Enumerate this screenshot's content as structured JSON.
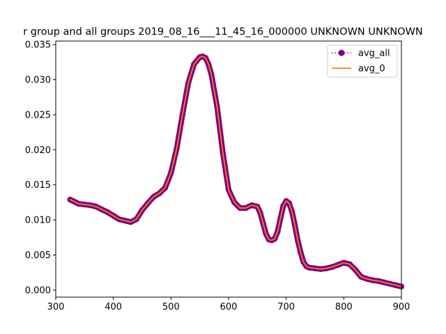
{
  "chart_data": {
    "type": "line",
    "title": "r group and all groups 2019_08_16___11_45_16_000000 UNKNOWN UNKNOWN",
    "xlabel": "",
    "ylabel": "",
    "xlim": [
      300,
      900
    ],
    "ylim": [
      -0.001,
      0.0355
    ],
    "x_ticks": [
      300,
      400,
      500,
      600,
      700,
      800,
      900
    ],
    "x_tick_labels": [
      "300",
      "400",
      "500",
      "600",
      "700",
      "800",
      "900"
    ],
    "y_ticks": [
      0.0,
      0.005,
      0.01,
      0.015,
      0.02,
      0.025,
      0.03,
      0.035
    ],
    "y_tick_labels": [
      "0.000",
      "0.005",
      "0.010",
      "0.015",
      "0.020",
      "0.025",
      "0.030",
      "0.035"
    ],
    "grid": false,
    "legend_position": "top-right",
    "x": [
      325,
      330,
      335,
      340,
      350,
      360,
      370,
      380,
      390,
      400,
      410,
      420,
      430,
      440,
      450,
      460,
      470,
      480,
      490,
      500,
      510,
      520,
      530,
      540,
      550,
      555,
      560,
      565,
      570,
      580,
      590,
      600,
      610,
      620,
      630,
      640,
      650,
      655,
      660,
      665,
      670,
      675,
      680,
      685,
      690,
      695,
      700,
      705,
      710,
      715,
      720,
      725,
      730,
      735,
      740,
      750,
      760,
      770,
      780,
      790,
      800,
      810,
      820,
      830,
      840,
      850,
      860,
      870,
      880,
      890,
      900
    ],
    "series": [
      {
        "name": "avg_all",
        "color": "#800080",
        "linestyle": "dotted",
        "marker": "circle",
        "values": [
          0.0129,
          0.0127,
          0.0125,
          0.0123,
          0.0122,
          0.0121,
          0.0119,
          0.0115,
          0.0111,
          0.0106,
          0.0101,
          0.0099,
          0.0097,
          0.0101,
          0.0114,
          0.0124,
          0.0133,
          0.0138,
          0.0146,
          0.0167,
          0.0202,
          0.025,
          0.0295,
          0.0322,
          0.0332,
          0.0333,
          0.0331,
          0.0322,
          0.0308,
          0.0262,
          0.0196,
          0.0143,
          0.0125,
          0.0117,
          0.0117,
          0.0121,
          0.0119,
          0.011,
          0.0095,
          0.008,
          0.0072,
          0.0071,
          0.0073,
          0.0083,
          0.0102,
          0.012,
          0.0127,
          0.0124,
          0.0112,
          0.0093,
          0.0071,
          0.0054,
          0.004,
          0.0034,
          0.0032,
          0.0031,
          0.003,
          0.0031,
          0.0033,
          0.0036,
          0.0039,
          0.0037,
          0.0029,
          0.0019,
          0.0016,
          0.0014,
          0.0013,
          0.0011,
          0.0009,
          0.0007,
          0.0005
        ]
      },
      {
        "name": "avg_0",
        "color": "#ff7f0e",
        "linestyle": "solid",
        "marker": "none",
        "values": [
          0.0129,
          0.0127,
          0.0125,
          0.0123,
          0.0122,
          0.0121,
          0.0119,
          0.0115,
          0.0111,
          0.0106,
          0.0101,
          0.0099,
          0.0097,
          0.0101,
          0.0114,
          0.0124,
          0.0133,
          0.0138,
          0.0146,
          0.0167,
          0.0202,
          0.025,
          0.0295,
          0.0322,
          0.0332,
          0.0333,
          0.0331,
          0.0322,
          0.0308,
          0.0262,
          0.0196,
          0.0143,
          0.0125,
          0.0117,
          0.0117,
          0.0121,
          0.0119,
          0.011,
          0.0095,
          0.008,
          0.0072,
          0.0071,
          0.0073,
          0.0083,
          0.0102,
          0.012,
          0.0127,
          0.0124,
          0.0112,
          0.0093,
          0.0071,
          0.0054,
          0.004,
          0.0034,
          0.0032,
          0.0031,
          0.003,
          0.0031,
          0.0033,
          0.0036,
          0.0039,
          0.0037,
          0.0029,
          0.0019,
          0.0016,
          0.0014,
          0.0013,
          0.0011,
          0.0009,
          0.0007,
          0.0005
        ]
      }
    ]
  }
}
